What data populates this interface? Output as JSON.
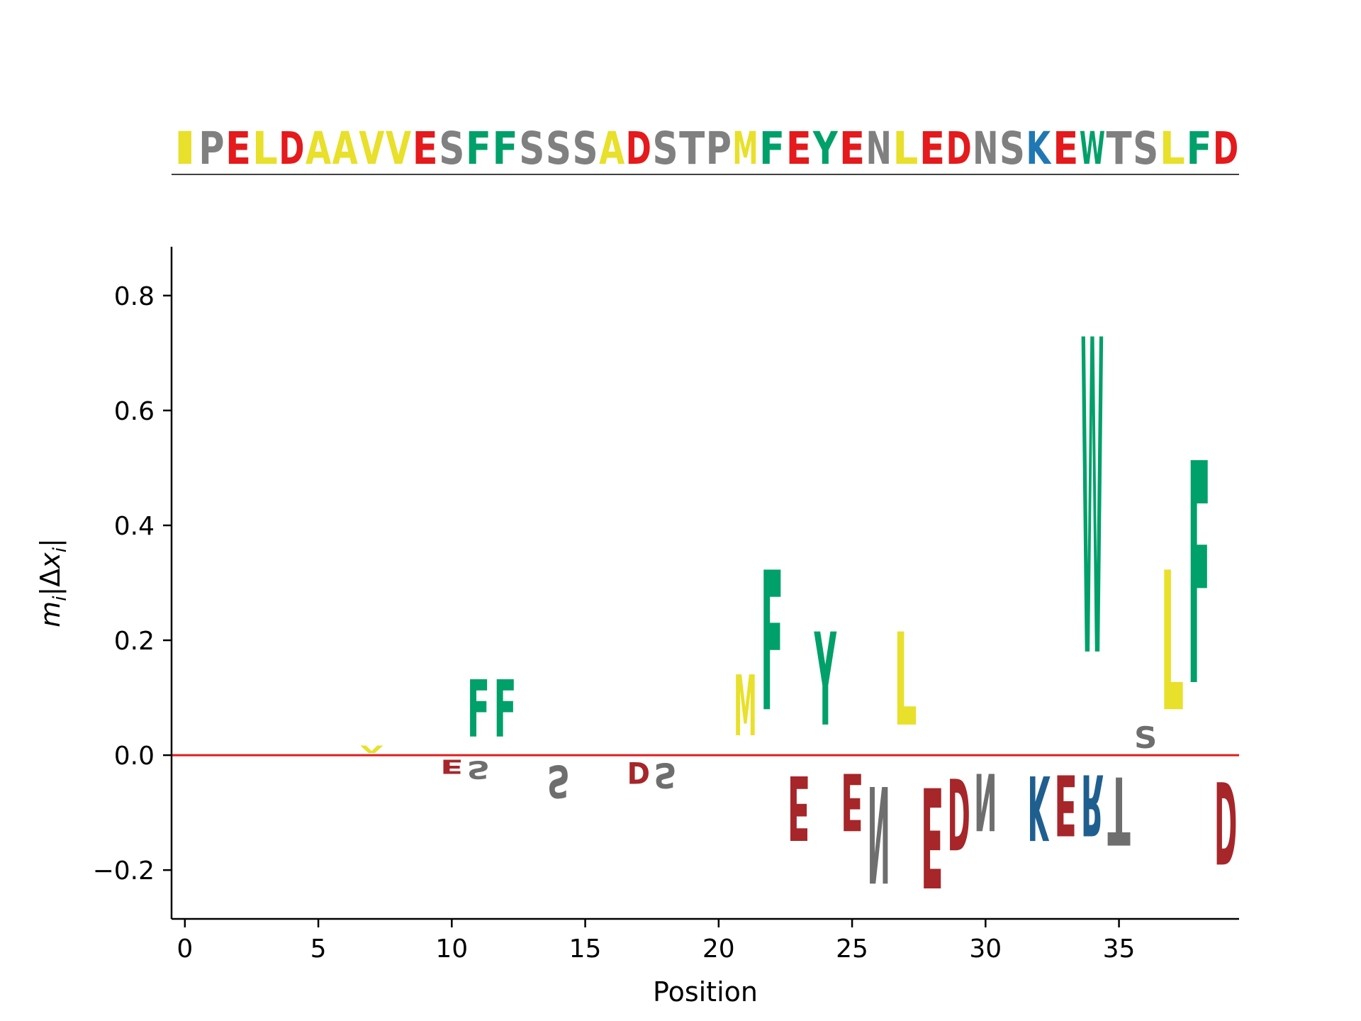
{
  "chart_data": {
    "type": "sequence-logo",
    "sequence": "IPELDAAVVESFFSSSADSTPMFEYENLEDNSKEWTSLFD",
    "xlabel": "Position",
    "ylabel": "m_i|Δx_i|",
    "xlim": [
      -0.5,
      39.5
    ],
    "ylim": [
      -0.285,
      0.885
    ],
    "xticks": [
      0,
      5,
      10,
      15,
      20,
      25,
      30,
      35
    ],
    "yticks": [
      -0.2,
      0.0,
      0.2,
      0.4,
      0.6,
      0.8
    ],
    "ytick_labels": [
      "−0.2",
      "0.0",
      "0.2",
      "0.4",
      "0.6",
      "0.8"
    ],
    "zero_line_color": "#e41a1c",
    "colors": {
      "seq_hydrophobic": "#e8e02a",
      "seq_polar": "#808080",
      "seq_acidic": "#e41a1c",
      "seq_aromatic": "#00a06a",
      "seq_basic": "#1f78b4",
      "logo_hydrophobic": "#e8e02a",
      "logo_aromatic": "#00a06a",
      "logo_polar": "#6e6e6e",
      "logo_acidic": "#a6262a",
      "logo_basic": "#1f5f8f"
    },
    "positive_stacks": [
      {
        "pos": 7,
        "letters": [
          {
            "aa": "V",
            "height": 0.02,
            "group": "hydrophobic"
          }
        ]
      },
      {
        "pos": 11,
        "letters": [
          {
            "aa": "F",
            "height": 0.16,
            "group": "aromatic"
          }
        ]
      },
      {
        "pos": 12,
        "letters": [
          {
            "aa": "F",
            "height": 0.16,
            "group": "aromatic"
          }
        ]
      },
      {
        "pos": 21,
        "letters": [
          {
            "aa": "M",
            "height": 0.17,
            "group": "hydrophobic"
          }
        ]
      },
      {
        "pos": 22,
        "letters": [
          {
            "aa": "F",
            "height": 0.39,
            "group": "aromatic"
          }
        ]
      },
      {
        "pos": 24,
        "letters": [
          {
            "aa": "Y",
            "height": 0.26,
            "group": "aromatic"
          }
        ]
      },
      {
        "pos": 27,
        "letters": [
          {
            "aa": "L",
            "height": 0.26,
            "group": "hydrophobic"
          }
        ]
      },
      {
        "pos": 34,
        "letters": [
          {
            "aa": "W",
            "height": 0.88,
            "group": "aromatic"
          }
        ]
      },
      {
        "pos": 36,
        "letters": [
          {
            "aa": "S",
            "height": 0.06,
            "group": "polar"
          }
        ]
      },
      {
        "pos": 37,
        "letters": [
          {
            "aa": "L",
            "height": 0.39,
            "group": "hydrophobic"
          }
        ]
      },
      {
        "pos": 38,
        "letters": [
          {
            "aa": "F",
            "height": 0.62,
            "group": "aromatic"
          }
        ]
      }
    ],
    "negative_stacks": [
      {
        "pos": 10,
        "letters": [
          {
            "aa": "E",
            "height": -0.04,
            "group": "acidic"
          }
        ]
      },
      {
        "pos": 11,
        "letters": [
          {
            "aa": "S",
            "height": -0.05,
            "group": "polar"
          }
        ]
      },
      {
        "pos": 14,
        "letters": [
          {
            "aa": "S",
            "height": -0.09,
            "group": "polar"
          }
        ]
      },
      {
        "pos": 17,
        "letters": [
          {
            "aa": "D",
            "height": -0.06,
            "group": "acidic"
          }
        ]
      },
      {
        "pos": 18,
        "letters": [
          {
            "aa": "S",
            "height": -0.07,
            "group": "polar"
          }
        ]
      },
      {
        "pos": 23,
        "letters": [
          {
            "aa": "E",
            "height": -0.18,
            "group": "acidic"
          }
        ]
      },
      {
        "pos": 25,
        "letters": [
          {
            "aa": "E",
            "height": -0.16,
            "group": "acidic"
          }
        ]
      },
      {
        "pos": 26,
        "letters": [
          {
            "aa": "N",
            "height": -0.27,
            "group": "polar"
          }
        ]
      },
      {
        "pos": 28,
        "letters": [
          {
            "aa": "E",
            "height": -0.28,
            "group": "acidic"
          }
        ]
      },
      {
        "pos": 29,
        "letters": [
          {
            "aa": "D",
            "height": -0.2,
            "group": "acidic"
          }
        ]
      },
      {
        "pos": 30,
        "letters": [
          {
            "aa": "N",
            "height": -0.16,
            "group": "polar"
          }
        ]
      },
      {
        "pos": 32,
        "letters": [
          {
            "aa": "K",
            "height": -0.18,
            "group": "basic"
          }
        ]
      },
      {
        "pos": 33,
        "letters": [
          {
            "aa": "E",
            "height": -0.17,
            "group": "acidic"
          }
        ]
      },
      {
        "pos": 34,
        "letters": [
          {
            "aa": "R",
            "height": -0.17,
            "group": "basic"
          }
        ]
      },
      {
        "pos": 35,
        "letters": [
          {
            "aa": "T",
            "height": -0.19,
            "group": "polar"
          }
        ]
      },
      {
        "pos": 39,
        "letters": [
          {
            "aa": "D",
            "height": -0.23,
            "group": "acidic"
          }
        ]
      }
    ]
  }
}
